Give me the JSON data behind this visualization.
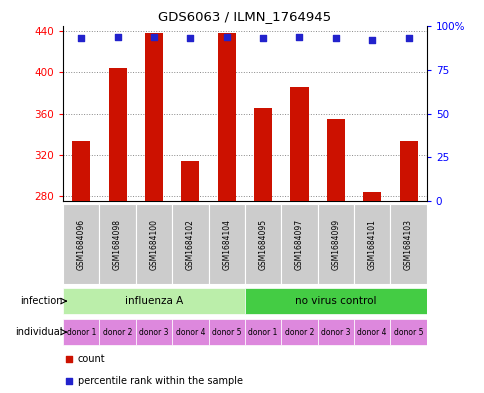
{
  "title": "GDS6063 / ILMN_1764945",
  "samples": [
    "GSM1684096",
    "GSM1684098",
    "GSM1684100",
    "GSM1684102",
    "GSM1684104",
    "GSM1684095",
    "GSM1684097",
    "GSM1684099",
    "GSM1684101",
    "GSM1684103"
  ],
  "counts": [
    333,
    404,
    438,
    314,
    438,
    365,
    386,
    355,
    284,
    333
  ],
  "percentiles": [
    93,
    94,
    94,
    93,
    94,
    93,
    94,
    93,
    92,
    93
  ],
  "ylim_left": [
    275,
    445
  ],
  "ylim_right": [
    0,
    100
  ],
  "yticks_left": [
    280,
    320,
    360,
    400,
    440
  ],
  "yticks_right": [
    0,
    25,
    50,
    75,
    100
  ],
  "infection_groups": [
    {
      "label": "influenza A",
      "start": 0,
      "end": 5,
      "color": "#bbeeaa"
    },
    {
      "label": "no virus control",
      "start": 5,
      "end": 10,
      "color": "#44cc44"
    }
  ],
  "individuals": [
    "donor 1",
    "donor 2",
    "donor 3",
    "donor 4",
    "donor 5",
    "donor 1",
    "donor 2",
    "donor 3",
    "donor 4",
    "donor 5"
  ],
  "individual_color": "#dd88dd",
  "bar_color": "#cc1100",
  "percentile_color": "#2222cc",
  "baseline": 275,
  "grid_color": "#888888",
  "plot_bg": "#ffffff",
  "sample_bg": "#cccccc",
  "legend_count_color": "#cc1100",
  "legend_pct_color": "#2222cc"
}
